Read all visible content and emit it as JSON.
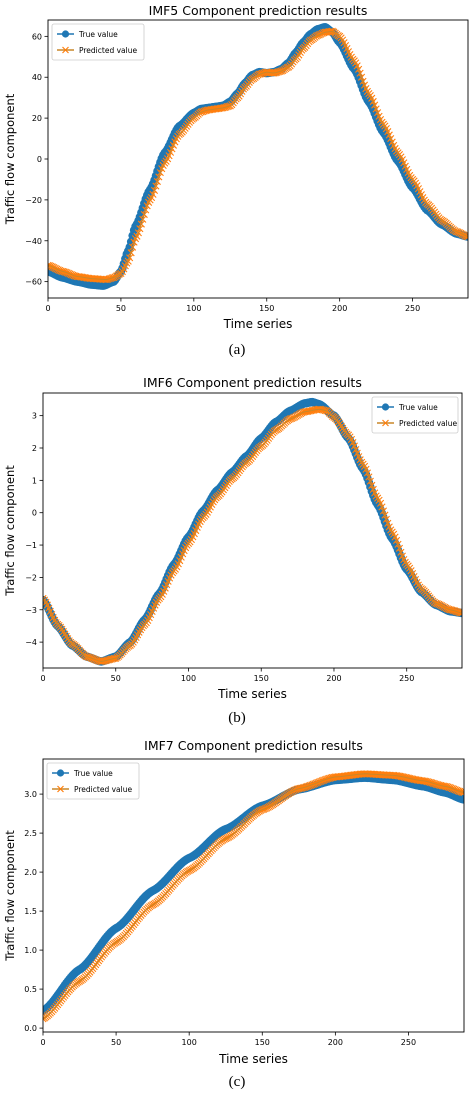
{
  "panel_labels": [
    "(a)",
    "(b)",
    "(c)"
  ],
  "colors": {
    "true_value": "#1f77b4",
    "predicted_value": "#ff7f0e",
    "predicted_line": "#c8872a"
  },
  "chart_data": [
    {
      "type": "line",
      "title": "IMF5 Component prediction results",
      "xlabel": "Time series",
      "ylabel": "Traffic flow component",
      "xlim": [
        0,
        288
      ],
      "ylim": [
        -68,
        68
      ],
      "xticks": [
        0,
        50,
        100,
        150,
        200,
        250
      ],
      "yticks": [
        -60,
        -40,
        -20,
        0,
        20,
        40,
        60
      ],
      "legend_position": "upper-left",
      "series": [
        {
          "name": "True value",
          "marker": "circle",
          "points": [
            [
              0,
              -55
            ],
            [
              10,
              -58
            ],
            [
              20,
              -60
            ],
            [
              30,
              -61.5
            ],
            [
              38,
              -62
            ],
            [
              45,
              -60
            ],
            [
              50,
              -55
            ],
            [
              55,
              -45
            ],
            [
              60,
              -33
            ],
            [
              70,
              -15
            ],
            [
              80,
              3
            ],
            [
              90,
              16
            ],
            [
              100,
              22.5
            ],
            [
              105,
              24.5
            ],
            [
              110,
              25
            ],
            [
              115,
              25.5
            ],
            [
              120,
              26
            ],
            [
              125,
              28
            ],
            [
              130,
              32
            ],
            [
              135,
              37
            ],
            [
              140,
              41
            ],
            [
              145,
              42.5
            ],
            [
              150,
              42
            ],
            [
              155,
              42.5
            ],
            [
              160,
              44
            ],
            [
              165,
              47
            ],
            [
              170,
              52
            ],
            [
              175,
              57
            ],
            [
              180,
              61
            ],
            [
              185,
              63.5
            ],
            [
              190,
              64.5
            ],
            [
              195,
              62
            ],
            [
              200,
              57
            ],
            [
              210,
              44
            ],
            [
              220,
              28
            ],
            [
              230,
              13
            ],
            [
              240,
              -1
            ],
            [
              250,
              -14
            ],
            [
              260,
              -25
            ],
            [
              270,
              -32
            ],
            [
              280,
              -36.5
            ],
            [
              288,
              -38
            ]
          ]
        },
        {
          "name": "Predicted value",
          "marker": "x",
          "points": [
            [
              0,
              -52
            ],
            [
              10,
              -55
            ],
            [
              20,
              -57.5
            ],
            [
              30,
              -58.5
            ],
            [
              40,
              -59
            ],
            [
              45,
              -58
            ],
            [
              50,
              -56
            ],
            [
              55,
              -50
            ],
            [
              60,
              -39
            ],
            [
              70,
              -20
            ],
            [
              80,
              -2
            ],
            [
              90,
              12
            ],
            [
              100,
              20
            ],
            [
              105,
              23
            ],
            [
              110,
              24
            ],
            [
              115,
              24.5
            ],
            [
              120,
              25
            ],
            [
              125,
              26
            ],
            [
              130,
              30
            ],
            [
              135,
              35
            ],
            [
              140,
              39
            ],
            [
              145,
              41.5
            ],
            [
              150,
              42.5
            ],
            [
              155,
              42
            ],
            [
              160,
              43
            ],
            [
              165,
              45
            ],
            [
              170,
              49
            ],
            [
              175,
              54
            ],
            [
              180,
              58
            ],
            [
              185,
              60.5
            ],
            [
              190,
              62
            ],
            [
              195,
              62.5
            ],
            [
              200,
              60
            ],
            [
              210,
              48
            ],
            [
              220,
              32
            ],
            [
              230,
              17
            ],
            [
              240,
              3
            ],
            [
              250,
              -10
            ],
            [
              260,
              -22
            ],
            [
              270,
              -30
            ],
            [
              280,
              -35.5
            ],
            [
              288,
              -38
            ]
          ]
        }
      ]
    },
    {
      "type": "line",
      "title": "IMF6 Component prediction results",
      "xlabel": "Time series",
      "ylabel": "Traffic flow component",
      "xlim": [
        0,
        288
      ],
      "ylim": [
        -4.8,
        3.7
      ],
      "xticks": [
        0,
        50,
        100,
        150,
        200,
        250
      ],
      "yticks": [
        -4,
        -3,
        -2,
        -1,
        0,
        1,
        2,
        3
      ],
      "legend_position": "upper-right",
      "series": [
        {
          "name": "True value",
          "marker": "circle",
          "points": [
            [
              0,
              -2.7
            ],
            [
              10,
              -3.5
            ],
            [
              20,
              -4.1
            ],
            [
              30,
              -4.45
            ],
            [
              40,
              -4.6
            ],
            [
              50,
              -4.45
            ],
            [
              60,
              -4.0
            ],
            [
              70,
              -3.3
            ],
            [
              80,
              -2.5
            ],
            [
              90,
              -1.6
            ],
            [
              100,
              -0.75
            ],
            [
              110,
              0.05
            ],
            [
              120,
              0.7
            ],
            [
              130,
              1.25
            ],
            [
              140,
              1.75
            ],
            [
              150,
              2.3
            ],
            [
              160,
              2.8
            ],
            [
              170,
              3.15
            ],
            [
              180,
              3.38
            ],
            [
              185,
              3.42
            ],
            [
              190,
              3.35
            ],
            [
              200,
              3.0
            ],
            [
              210,
              2.3
            ],
            [
              220,
              1.35
            ],
            [
              230,
              0.25
            ],
            [
              240,
              -0.8
            ],
            [
              250,
              -1.75
            ],
            [
              260,
              -2.45
            ],
            [
              270,
              -2.85
            ],
            [
              280,
              -3.05
            ],
            [
              288,
              -3.1
            ]
          ]
        },
        {
          "name": "Predicted value",
          "marker": "x",
          "points": [
            [
              0,
              -2.65
            ],
            [
              10,
              -3.45
            ],
            [
              20,
              -4.05
            ],
            [
              30,
              -4.45
            ],
            [
              40,
              -4.6
            ],
            [
              50,
              -4.5
            ],
            [
              60,
              -4.1
            ],
            [
              70,
              -3.45
            ],
            [
              80,
              -2.65
            ],
            [
              90,
              -1.8
            ],
            [
              100,
              -0.95
            ],
            [
              110,
              -0.15
            ],
            [
              120,
              0.5
            ],
            [
              130,
              1.05
            ],
            [
              140,
              1.55
            ],
            [
              150,
              2.05
            ],
            [
              160,
              2.55
            ],
            [
              170,
              2.9
            ],
            [
              180,
              3.12
            ],
            [
              190,
              3.2
            ],
            [
              195,
              3.15
            ],
            [
              200,
              2.95
            ],
            [
              210,
              2.4
            ],
            [
              220,
              1.5
            ],
            [
              230,
              0.45
            ],
            [
              240,
              -0.6
            ],
            [
              250,
              -1.6
            ],
            [
              260,
              -2.35
            ],
            [
              270,
              -2.8
            ],
            [
              280,
              -3.0
            ],
            [
              288,
              -3.1
            ]
          ]
        }
      ]
    },
    {
      "type": "line",
      "title": "IMF7 Component prediction results",
      "xlabel": "Time series",
      "ylabel": "Traffic flow component",
      "xlim": [
        0,
        288
      ],
      "ylim": [
        -0.05,
        3.45
      ],
      "xticks": [
        0,
        50,
        100,
        150,
        200,
        250
      ],
      "yticks": [
        0.0,
        0.5,
        1.0,
        1.5,
        2.0,
        2.5,
        3.0
      ],
      "legend_position": "upper-left",
      "series": [
        {
          "name": "True value",
          "marker": "circle",
          "points": [
            [
              0,
              0.22
            ],
            [
              25,
              0.75
            ],
            [
              50,
              1.28
            ],
            [
              75,
              1.76
            ],
            [
              100,
              2.18
            ],
            [
              125,
              2.55
            ],
            [
              150,
              2.85
            ],
            [
              175,
              3.06
            ],
            [
              200,
              3.18
            ],
            [
              220,
              3.21
            ],
            [
              240,
              3.18
            ],
            [
              260,
              3.1
            ],
            [
              275,
              3.02
            ],
            [
              288,
              2.93
            ]
          ]
        },
        {
          "name": "Predicted value",
          "marker": "x",
          "points": [
            [
              0,
              0.12
            ],
            [
              25,
              0.6
            ],
            [
              50,
              1.1
            ],
            [
              75,
              1.58
            ],
            [
              100,
              2.02
            ],
            [
              125,
              2.43
            ],
            [
              150,
              2.8
            ],
            [
              175,
              3.07
            ],
            [
              200,
              3.22
            ],
            [
              220,
              3.26
            ],
            [
              240,
              3.24
            ],
            [
              260,
              3.17
            ],
            [
              275,
              3.1
            ],
            [
              288,
              3.02
            ]
          ]
        }
      ]
    }
  ]
}
